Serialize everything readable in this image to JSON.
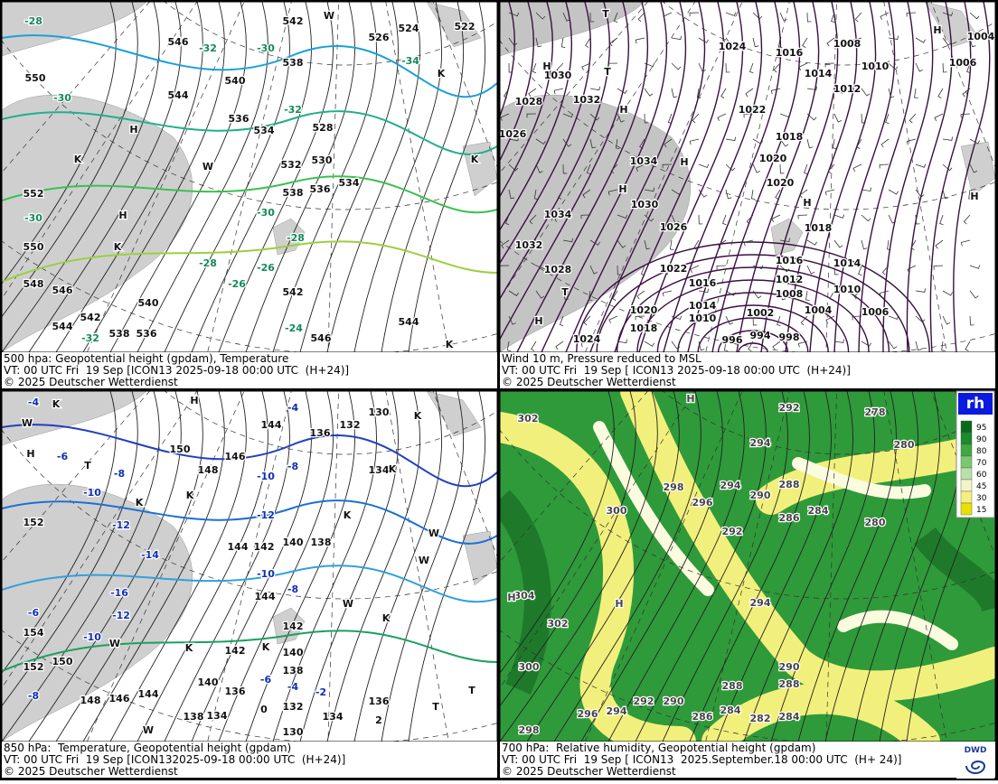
{
  "panels": [
    {
      "caption": [
        "500 hpa: Geopotential height (gpdam), Temperature",
        "VT: 00 UTC Fri  19 Sep [ICON13 2025-09-18 00:00 UTC  (H+24)]",
        "© 2025 Deutscher Wetterdienst"
      ],
      "labels": [
        "542",
        "546",
        "550",
        "-30",
        "544",
        "-32",
        "540",
        "536",
        "534",
        "532",
        "538",
        "536",
        "534",
        "528",
        "530",
        "524",
        "-34",
        "552",
        "-30",
        "550",
        "548",
        "546",
        "544",
        "542",
        "538",
        "536",
        "540",
        "-28",
        "-26",
        "-26",
        "-28",
        "-30",
        "542",
        "544",
        "546",
        "-24",
        "-32",
        "-28",
        "-30",
        "-32",
        "538",
        "526",
        "522",
        "H",
        "H",
        "K",
        "K",
        "W",
        "K",
        "K",
        "W",
        "K"
      ]
    },
    {
      "caption": [
        "Wind 10 m, Pressure reduced to MSL",
        "VT: 00 UTC Fri  19 Sep [ ICON13 2025-09-18 00:00 UTC  (H+24)]",
        "© 2025 Deutscher Wetterdienst"
      ],
      "labels": [
        "1024",
        "1016",
        "1014",
        "1012",
        "1008",
        "1010",
        "1006",
        "1004",
        "1030",
        "1032",
        "1028",
        "1026",
        "1022",
        "1018",
        "1020",
        "1020",
        "1034",
        "1030",
        "1034",
        "1026",
        "1032",
        "1028",
        "1018",
        "1016",
        "1014",
        "1022",
        "1016",
        "1012",
        "1010",
        "1008",
        "1014",
        "1020",
        "1002",
        "1004",
        "1006",
        "1010",
        "1018",
        "996",
        "994",
        "998",
        "1024",
        "H",
        "H",
        "H",
        "H",
        "H",
        "H",
        "H",
        "T",
        "T",
        "T",
        "H"
      ]
    },
    {
      "caption": [
        "850 hPa:  Temperature, Geopotential height (gpdam)",
        "VT: 00 UTC Fri  19 Sep [ICON132025-09-18 00:00 UTC  (H+24)]",
        "© 2025 Deutscher Wetterdienst"
      ],
      "labels": [
        "150",
        "148",
        "146",
        "144",
        "-10",
        "-8",
        "-4",
        "136",
        "132",
        "130",
        "134",
        "-12",
        "140",
        "142",
        "144",
        "138",
        "-10",
        "-8",
        "144",
        "142",
        "140",
        "142",
        "138",
        "140",
        "-6",
        "-4",
        "-2",
        "136",
        "134",
        "138",
        "144",
        "146",
        "148",
        "132",
        "130",
        "134",
        "136",
        "2",
        "0",
        "-8",
        "-10",
        "-6",
        "-4",
        "152",
        "-12",
        "-14",
        "-16",
        "-12",
        "-6",
        "-10",
        "154",
        "152",
        "150",
        "-8",
        "H",
        "K",
        "W",
        "H",
        "T",
        "K",
        "K",
        "K",
        "K",
        "K",
        "W",
        "W",
        "W",
        "K",
        "T",
        "T",
        "W",
        "W",
        "K",
        "K"
      ]
    },
    {
      "caption": [
        "700 hPa:  Relative humidity, Geopotential height (gpdam)",
        "VT: 00 UTC Fri  19 Sep [ ICON13  2025.September.18 00:00 UTC  (H+ 24)]",
        "© 2025 Deutscher Wetterdienst"
      ],
      "labels": [
        "302",
        "292",
        "278",
        "280",
        "294",
        "290",
        "288",
        "298",
        "296",
        "294",
        "300",
        "292",
        "286",
        "284",
        "280",
        "304",
        "302",
        "300",
        "294",
        "290",
        "288",
        "288",
        "286",
        "284",
        "282",
        "284",
        "290",
        "292",
        "294",
        "296",
        "298",
        "H",
        "H",
        "H"
      ]
    }
  ],
  "legend": {
    "title": "rh",
    "levels": [
      95,
      90,
      80,
      70,
      60,
      45,
      30,
      15
    ]
  },
  "logo": "DWD"
}
